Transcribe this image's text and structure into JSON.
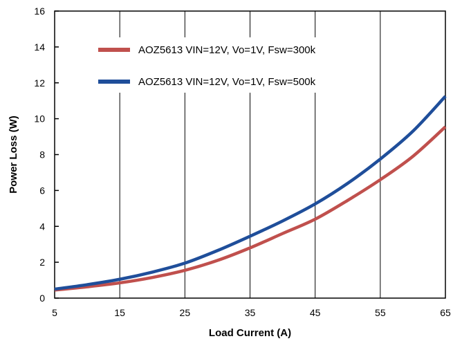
{
  "chart_data": {
    "type": "line",
    "title": "",
    "xlabel": "Load Current (A)",
    "ylabel": "Power Loss (W)",
    "xlim": [
      5,
      65
    ],
    "ylim": [
      0,
      16
    ],
    "xticks": [
      "5",
      "15",
      "25",
      "35",
      "45",
      "55",
      "65"
    ],
    "yticks": [
      "0",
      "2",
      "4",
      "6",
      "8",
      "10",
      "12",
      "14",
      "16"
    ],
    "grid": "vertical",
    "legend_position": "top-left",
    "series": [
      {
        "name": "AOZ5613 VIN=12V, Vo=1V, Fsw=300k",
        "color": "#c0504d",
        "x": [
          5,
          10,
          15,
          20,
          25,
          30,
          35,
          40,
          45,
          50,
          55,
          60,
          65
        ],
        "y": [
          0.45,
          0.63,
          0.85,
          1.15,
          1.55,
          2.1,
          2.8,
          3.6,
          4.4,
          5.45,
          6.6,
          7.9,
          9.55
        ]
      },
      {
        "name": "AOZ5613 VIN=12V, Vo=1V, Fsw=500k",
        "color": "#1f4e9a",
        "x": [
          5,
          10,
          15,
          20,
          25,
          30,
          35,
          40,
          45,
          50,
          55,
          60,
          65
        ],
        "y": [
          0.5,
          0.75,
          1.05,
          1.45,
          1.95,
          2.65,
          3.45,
          4.3,
          5.25,
          6.4,
          7.75,
          9.3,
          11.25
        ]
      }
    ]
  }
}
